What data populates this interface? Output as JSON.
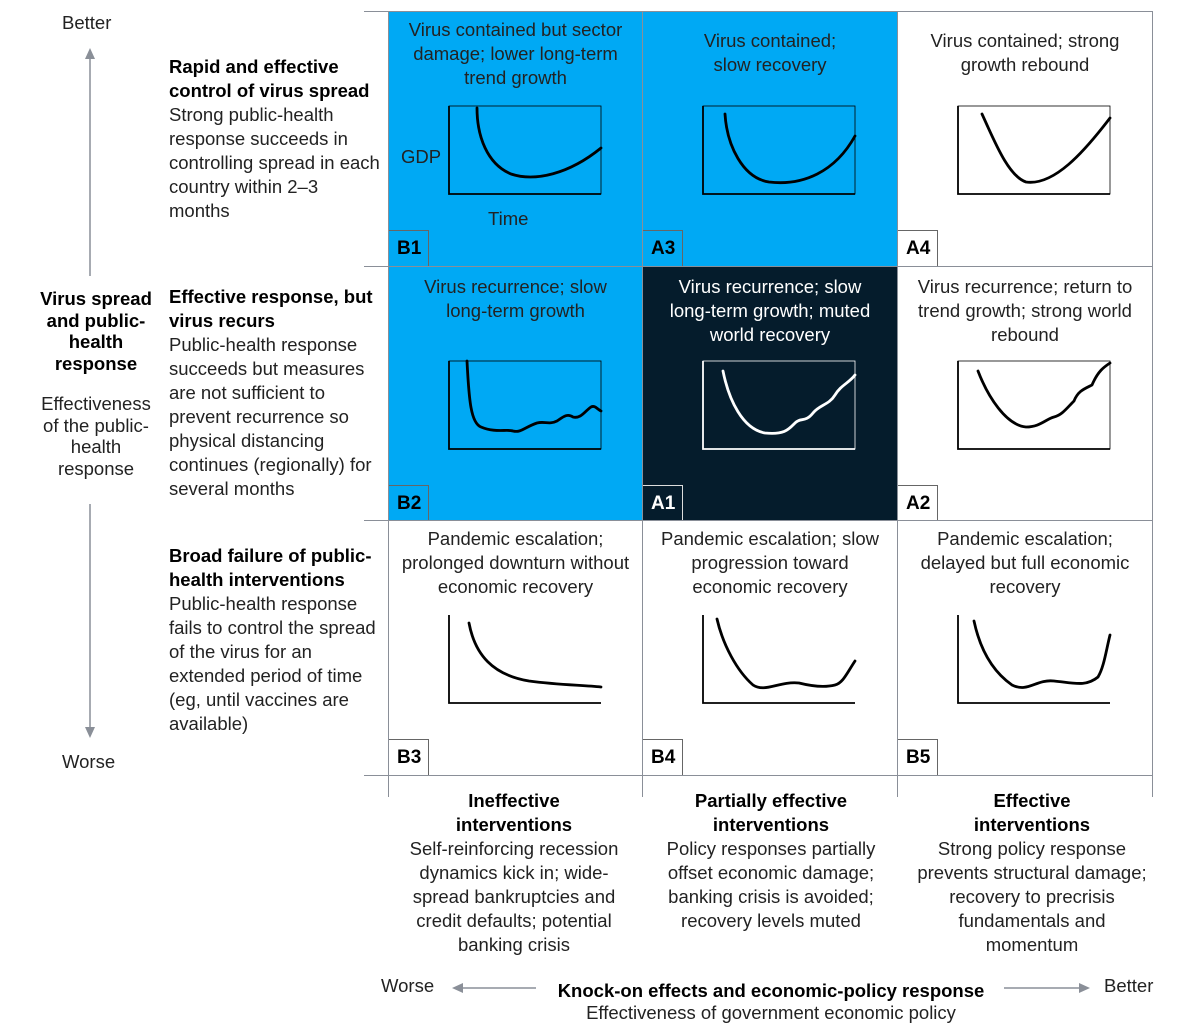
{
  "y_axis": {
    "better": "Better",
    "worse": "Worse",
    "title": "Virus spread and public-health response",
    "subtitle": "Effectiveness of the public-health response"
  },
  "rows": [
    {
      "heading": "Rapid and effective control of virus spread",
      "text": "Strong public-health response succeeds in controlling spread in each country within 2–3 months"
    },
    {
      "heading": "Effective response, but virus recurs",
      "text": "Public-health response succeeds but measures are not sufficient to prevent recurrence so physical distancing continues (regionally) for several months"
    },
    {
      "heading": "Broad failure of public-health interventions",
      "text": "Public-health response fails to control the spread of the virus for an extended period of time (eg, until vaccines are available)"
    }
  ],
  "cells": [
    {
      "id": "B1",
      "title": "Virus contained but sector damage; lower long-term trend growth",
      "fill": "#00a9f4"
    },
    {
      "id": "A3",
      "title": "Virus contained; slow recovery",
      "fill": "#00a9f4"
    },
    {
      "id": "A4",
      "title": "Virus contained; strong growth rebound",
      "fill": "#ffffff"
    },
    {
      "id": "B2",
      "title": "Virus recurrence; slow long-term growth",
      "fill": "#00a9f4"
    },
    {
      "id": "A1",
      "title": "Virus recurrence; slow long-term growth; muted world recovery",
      "fill": "#051c2c"
    },
    {
      "id": "A2",
      "title": "Virus recurrence; return to trend growth; strong world rebound",
      "fill": "#ffffff"
    },
    {
      "id": "B3",
      "title": "Pandemic escalation; prolonged downturn without economic recovery",
      "fill": "#ffffff"
    },
    {
      "id": "B4",
      "title": "Pandemic escalation; slow progression toward economic recovery",
      "fill": "#ffffff"
    },
    {
      "id": "B5",
      "title": "Pandemic escalation; delayed but full economic recovery",
      "fill": "#ffffff"
    }
  ],
  "mini_axes": {
    "y": "GDP",
    "x": "Time"
  },
  "columns": [
    {
      "heading": "Ineffective interventions",
      "text": "Self-reinforcing recession dynamics kick in; wide-spread bankruptcies and credit defaults; potential banking crisis"
    },
    {
      "heading": "Partially effective interventions",
      "text": "Policy responses partially offset economic damage; banking crisis is avoided; recovery levels muted"
    },
    {
      "heading": "Effective interventions",
      "text": "Strong policy response prevents structural damage; recovery to precrisis fundamentals and momentum"
    }
  ],
  "x_axis": {
    "worse": "Worse",
    "better": "Better",
    "title": "Knock-on effects and economic-policy response",
    "subtitle": "Effectiveness of government economic policy"
  }
}
